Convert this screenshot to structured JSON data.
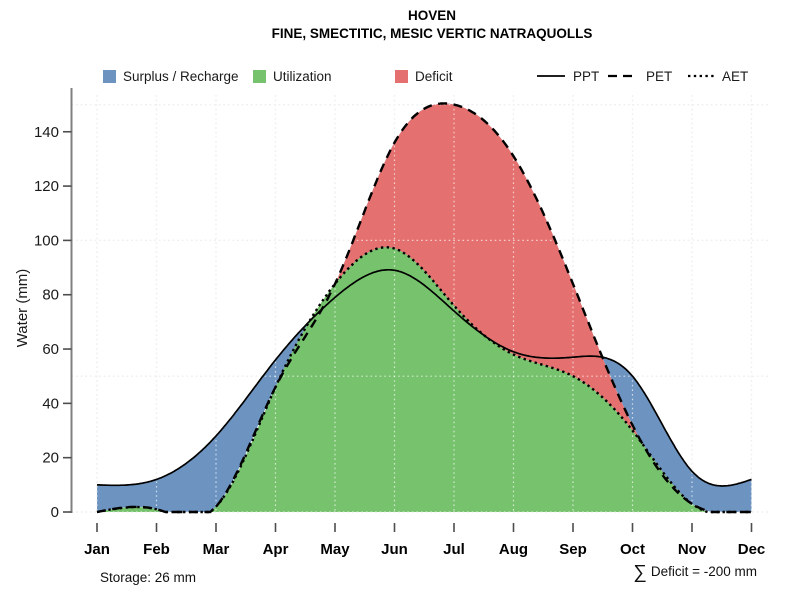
{
  "header": {
    "title": "HOVEN",
    "subtitle": "FINE, SMECTITIC, MESIC VERTIC NATRAQUOLLS"
  },
  "legend": {
    "areas": [
      {
        "label": "Surplus / Recharge",
        "color": "#6D94C1"
      },
      {
        "label": "Utilization",
        "color": "#77C26D"
      },
      {
        "label": "Deficit",
        "color": "#E4716F"
      }
    ],
    "lines": [
      {
        "label": "PPT",
        "style": "solid"
      },
      {
        "label": "PET",
        "style": "dashed"
      },
      {
        "label": "AET",
        "style": "dotted"
      }
    ]
  },
  "chart_data": {
    "type": "area",
    "title": "HOVEN",
    "subtitle": "FINE, SMECTITIC, MESIC VERTIC NATRAQUOLLS",
    "x": [
      "Jan",
      "Feb",
      "Mar",
      "Apr",
      "May",
      "Jun",
      "Jul",
      "Aug",
      "Sep",
      "Oct",
      "Nov",
      "Dec"
    ],
    "ylabel": "Water (mm)",
    "ylim": [
      0,
      155
    ],
    "yticks": [
      0,
      20,
      40,
      60,
      80,
      100,
      120,
      140
    ],
    "grid_y": [
      0,
      50,
      100,
      150
    ],
    "grid": "dotted",
    "series": [
      {
        "name": "PPT",
        "line_style": "solid",
        "values": [
          10,
          12,
          28,
          56,
          79,
          89,
          74,
          59,
          57,
          50,
          15,
          12
        ]
      },
      {
        "name": "PET",
        "line_style": "dashed",
        "values": [
          0,
          1,
          2,
          46,
          84,
          136,
          150,
          131,
          84,
          32,
          3,
          0
        ]
      },
      {
        "name": "AET",
        "line_style": "dotted",
        "values": [
          0,
          1,
          2,
          46,
          84,
          97,
          76,
          58,
          50,
          30,
          3,
          0
        ]
      }
    ],
    "areas": [
      {
        "label": "Surplus / Recharge",
        "color": "#6D94C1",
        "between": [
          "PPT",
          "PET"
        ]
      },
      {
        "label": "Utilization",
        "color": "#77C26D",
        "between": [
          "AET",
          "baseline"
        ]
      },
      {
        "label": "Deficit",
        "color": "#E4716F",
        "between": [
          "PET",
          "AET"
        ]
      }
    ],
    "annotations": {
      "storage_mm": 26,
      "deficit_sum_mm": -200
    }
  },
  "footer": {
    "storage": "Storage: 26 mm",
    "deficit_sigma": "∑",
    "deficit_text": "Deficit = -200 mm"
  }
}
